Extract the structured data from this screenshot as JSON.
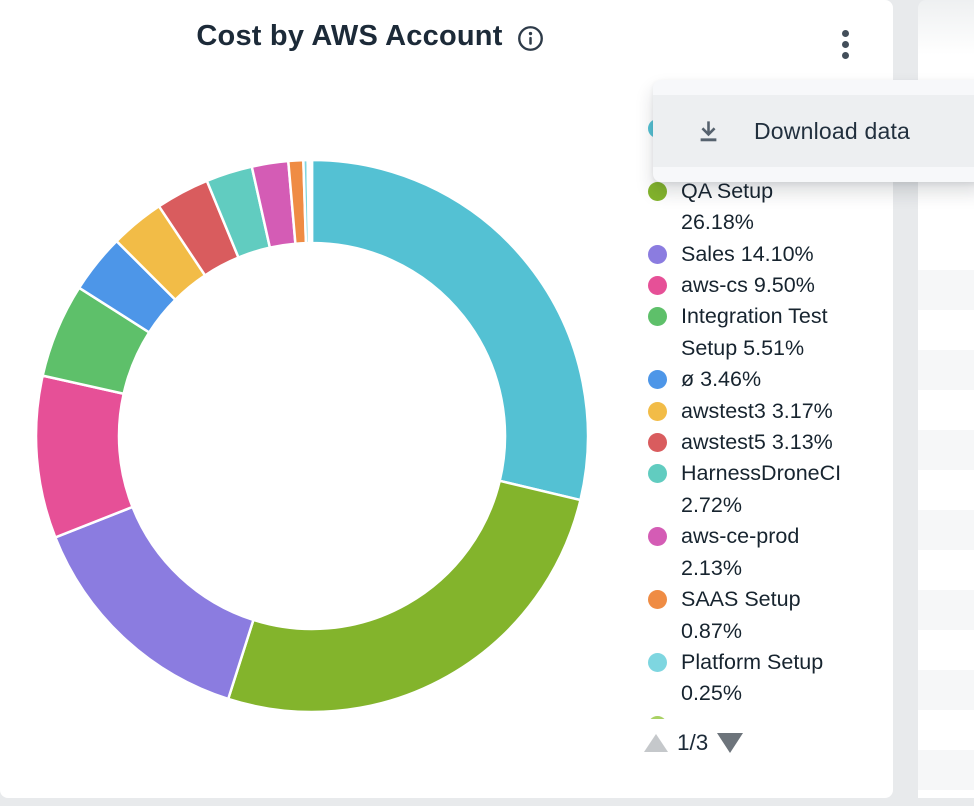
{
  "card": {
    "title": "Cost by AWS Account"
  },
  "menu": {
    "download_label": "Download data"
  },
  "legend": {
    "pagination": "1/3",
    "items": [
      {
        "label": "",
        "pct": "",
        "color": "#54c1d3",
        "lines": [
          "",
          ""
        ],
        "obscured_by_menu": true
      },
      {
        "label": "QA Setup",
        "pct": "26.18%",
        "color": "#83b42c",
        "lines": [
          "QA Setup",
          "26.18%"
        ]
      },
      {
        "label": "Sales",
        "pct": "14.10%",
        "color": "#8b7ce0",
        "lines": [
          "Sales 14.10%"
        ]
      },
      {
        "label": "aws-cs",
        "pct": "9.50%",
        "color": "#e65097",
        "lines": [
          "aws-cs 9.50%"
        ]
      },
      {
        "label": "Integration Test Setup",
        "pct": "5.51%",
        "color": "#5ec06a",
        "lines": [
          "Integration Test",
          "Setup 5.51%"
        ]
      },
      {
        "label": "ø",
        "pct": "3.46%",
        "color": "#4d96e8",
        "lines": [
          "ø 3.46%"
        ]
      },
      {
        "label": "awstest3",
        "pct": "3.17%",
        "color": "#f2bc47",
        "lines": [
          "awstest3 3.17%"
        ]
      },
      {
        "label": "awstest5",
        "pct": "3.13%",
        "color": "#d95c5e",
        "lines": [
          "awstest5 3.13%"
        ]
      },
      {
        "label": "HarnessDroneCI",
        "pct": "2.72%",
        "color": "#61ccc0",
        "lines": [
          "HarnessDroneCI",
          "2.72%"
        ]
      },
      {
        "label": "aws-ce-prod",
        "pct": "2.13%",
        "color": "#d45cb5",
        "lines": [
          "aws-ce-prod",
          "2.13%"
        ]
      },
      {
        "label": "SAAS Setup",
        "pct": "0.87%",
        "color": "#ef8c44",
        "lines": [
          "SAAS Setup",
          "0.87%"
        ]
      },
      {
        "label": "Platform Setup",
        "pct": "0.25%",
        "color": "#7ed6e0",
        "lines": [
          "Platform Setup",
          "0.25%"
        ]
      },
      {
        "label": "",
        "pct": "",
        "color": "#a9d163",
        "lines": [],
        "clipped": true
      }
    ]
  },
  "chart_data": {
    "type": "pie",
    "donut": true,
    "title": "Cost by AWS Account",
    "legend_position": "right",
    "pagination": "1/3",
    "slices": [
      {
        "label": "",
        "value": 28.73,
        "color": "#54c1d3"
      },
      {
        "label": "QA Setup",
        "value": 26.18,
        "color": "#83b42c"
      },
      {
        "label": "Sales",
        "value": 14.1,
        "color": "#8b7ce0"
      },
      {
        "label": "aws-cs",
        "value": 9.5,
        "color": "#e65097"
      },
      {
        "label": "Integration Test Setup",
        "value": 5.51,
        "color": "#5ec06a"
      },
      {
        "label": "ø",
        "value": 3.46,
        "color": "#4d96e8"
      },
      {
        "label": "awstest3",
        "value": 3.17,
        "color": "#f2bc47"
      },
      {
        "label": "awstest5",
        "value": 3.13,
        "color": "#d95c5e"
      },
      {
        "label": "HarnessDroneCI",
        "value": 2.72,
        "color": "#61ccc0"
      },
      {
        "label": "aws-ce-prod",
        "value": 2.13,
        "color": "#d45cb5"
      },
      {
        "label": "SAAS Setup",
        "value": 0.87,
        "color": "#ef8c44"
      },
      {
        "label": "Platform Setup",
        "value": 0.25,
        "color": "#7ed6e0"
      },
      {
        "label": "",
        "value": 0.13,
        "color": "#a9d163"
      },
      {
        "label": "",
        "value": 0.12,
        "color": "#e9e15c"
      }
    ]
  }
}
